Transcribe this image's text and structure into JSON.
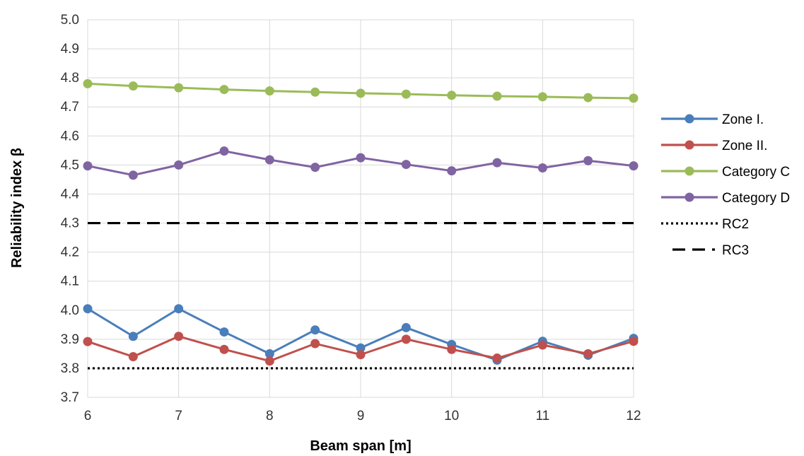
{
  "chart_data": {
    "type": "line",
    "title": "",
    "xlabel": "Beam span [m]",
    "ylabel": "Reliability index β",
    "xlim": [
      6,
      12
    ],
    "ylim": [
      3.7,
      5.0
    ],
    "x_ticks": [
      6,
      7,
      8,
      9,
      10,
      11,
      12
    ],
    "y_ticks": [
      3.7,
      3.8,
      3.9,
      4.0,
      4.1,
      4.2,
      4.3,
      4.4,
      4.5,
      4.6,
      4.7,
      4.8,
      4.9,
      5.0
    ],
    "grid": true,
    "legend_position": "right",
    "x": [
      6,
      6.5,
      7,
      7.5,
      8,
      8.5,
      9,
      9.5,
      10,
      10.5,
      11,
      11.5,
      12
    ],
    "series": [
      {
        "name": "Zone I.",
        "color": "#4A7EBB",
        "style": "solid-marker",
        "values": [
          4.005,
          3.91,
          4.005,
          3.925,
          3.85,
          3.932,
          3.87,
          3.94,
          3.882,
          3.828,
          3.893,
          3.845,
          3.903
        ]
      },
      {
        "name": "Zone II.",
        "color": "#C0504D",
        "style": "solid-marker",
        "values": [
          3.892,
          3.84,
          3.91,
          3.865,
          3.825,
          3.885,
          3.847,
          3.9,
          3.865,
          3.835,
          3.88,
          3.85,
          3.893
        ]
      },
      {
        "name": "Category C",
        "color": "#9BBB59",
        "style": "solid-marker",
        "values": [
          4.78,
          4.772,
          4.766,
          4.76,
          4.755,
          4.751,
          4.747,
          4.744,
          4.74,
          4.737,
          4.735,
          4.732,
          4.73
        ]
      },
      {
        "name": "Category D",
        "color": "#8064A2",
        "style": "solid-marker",
        "values": [
          4.497,
          4.465,
          4.5,
          4.548,
          4.518,
          4.492,
          4.525,
          4.502,
          4.48,
          4.508,
          4.49,
          4.515,
          4.497
        ]
      },
      {
        "name": "RC2",
        "color": "#000000",
        "style": "dotted",
        "values": [
          3.8,
          3.8,
          3.8,
          3.8,
          3.8,
          3.8,
          3.8,
          3.8,
          3.8,
          3.8,
          3.8,
          3.8,
          3.8
        ]
      },
      {
        "name": "RC3",
        "color": "#000000",
        "style": "dashed",
        "values": [
          4.3,
          4.3,
          4.3,
          4.3,
          4.3,
          4.3,
          4.3,
          4.3,
          4.3,
          4.3,
          4.3,
          4.3,
          4.3
        ]
      }
    ]
  }
}
